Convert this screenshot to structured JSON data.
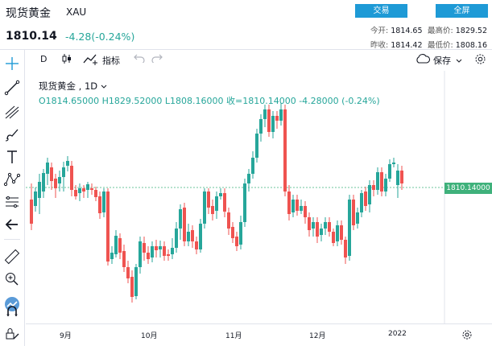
{
  "header": {
    "title": "现货黄金",
    "symbol": "XAU",
    "price": "1810.14",
    "change": "-4.28(-0.24%)",
    "trade_button": "交易",
    "fullscreen_button": "全屏",
    "quotes": {
      "open_label": "今开:",
      "open_value": "1814.65",
      "high_label": "最高价:",
      "high_value": "1829.52",
      "prevclose_label": "昨收:",
      "prevclose_value": "1814.42",
      "low_label": "最低价:",
      "low_value": "1808.16"
    }
  },
  "toolbar": {
    "interval": "D",
    "indicators": "指标",
    "save": "保存"
  },
  "legend": {
    "name": "现货黄金 , 1D",
    "ohlc": "O1814.65000  H1829.52000  L1808.16000  收=1810.14000  -4.28000 (-0.24%)"
  },
  "price_tag": "1810.14000",
  "colors": {
    "up": "#26a69a",
    "down": "#ef5350",
    "accent": "#1e9ad6"
  },
  "chart_data": {
    "type": "candlestick",
    "symbol": "XAU",
    "interval": "1D",
    "x_labels": [
      "9月",
      "10月",
      "11月",
      "12月",
      "2022"
    ],
    "last_price": 1810.14,
    "candles": []
  }
}
